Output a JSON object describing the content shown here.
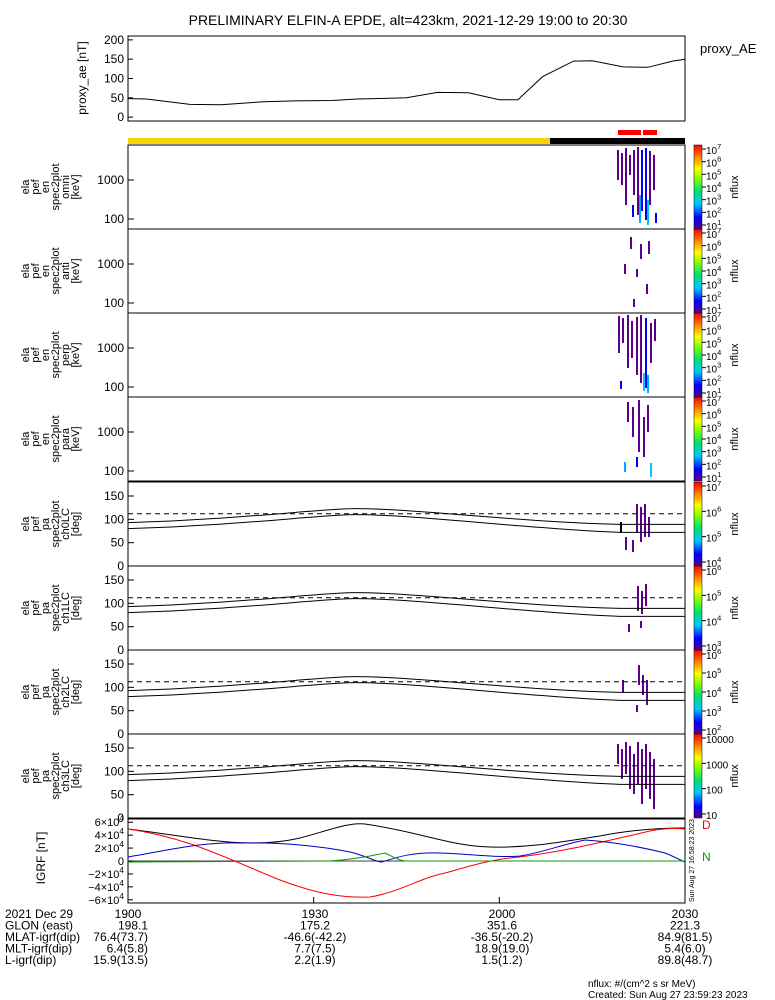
{
  "title": "PRELIMINARY ELFIN-A EPDE, alt=423km, 2021-12-29 19:00 to 20:30",
  "colors": {
    "yellow": "#f5d800",
    "black": "#000000",
    "red": "#ff0000",
    "blue": "#0000cc",
    "green": "#00a000"
  },
  "chart_data": [
    {
      "type": "line",
      "panel": "proxy_ae",
      "ylabel": "proxy_ae [nT]",
      "legend": "proxy_AE",
      "ylim": [
        -10,
        210
      ],
      "yticks": [
        "200",
        "150",
        "100",
        "50",
        "0"
      ],
      "x_min": [
        0,
        3,
        10,
        15,
        22,
        27,
        33,
        37,
        40,
        45,
        50,
        55,
        60,
        63,
        67,
        72,
        75,
        80,
        84,
        88,
        90
      ],
      "values": [
        48,
        47,
        33,
        32,
        40,
        42,
        43,
        47,
        48,
        50,
        64,
        63,
        45,
        45,
        105,
        145,
        146,
        130,
        129,
        145,
        150
      ]
    },
    {
      "type": "heatmap",
      "panel": "ela_pef_en_spec2plot_omni",
      "ylabel": "ela pef en spec2plot omni [keV]",
      "yscale": "log",
      "yticks": [
        "1000",
        "100"
      ],
      "colorbar_label": "nflux",
      "colorbar_ticks": [
        "10^1",
        "10^2",
        "10^3",
        "10^4",
        "10^5",
        "10^6",
        "10^7"
      ]
    },
    {
      "type": "heatmap",
      "panel": "ela_pef_en_spec2plot_anti",
      "ylabel": "ela pef en spec2plot anti [keV]",
      "yscale": "log",
      "yticks": [
        "1000",
        "100"
      ],
      "colorbar_label": "nflux",
      "colorbar_ticks": [
        "10^1",
        "10^2",
        "10^3",
        "10^4",
        "10^5",
        "10^6",
        "10^7"
      ]
    },
    {
      "type": "heatmap",
      "panel": "ela_pef_en_spec2plot_perp",
      "ylabel": "ela pef en spec2plot perp [keV]",
      "yscale": "log",
      "yticks": [
        "1000",
        "100"
      ],
      "colorbar_label": "nflux",
      "colorbar_ticks": [
        "10^1",
        "10^2",
        "10^3",
        "10^4",
        "10^5",
        "10^6",
        "10^7"
      ]
    },
    {
      "type": "heatmap",
      "panel": "ela_pef_en_spec2plot_para",
      "ylabel": "ela pef en spec2plot para [keV]",
      "yscale": "log",
      "yticks": [
        "1000",
        "100"
      ],
      "colorbar_label": "nflux",
      "colorbar_ticks": [
        "10^1",
        "10^2",
        "10^3",
        "10^4",
        "10^5",
        "10^6",
        "10^7"
      ]
    },
    {
      "type": "heatmap",
      "panel": "ela_pef_pa_spec2plot_ch0LC",
      "ylabel": "ela pef pa spec2plot ch0LC [deg]",
      "ylim": [
        0,
        180
      ],
      "yticks": [
        "150",
        "100",
        "50",
        "0"
      ],
      "colorbar_label": "nflux",
      "colorbar_ticks": [
        "10^4",
        "10^5",
        "10^6",
        "10^7"
      ]
    },
    {
      "type": "heatmap",
      "panel": "ela_pef_pa_spec2plot_ch1LC",
      "ylabel": "ela pef pa spec2plot ch1LC [deg]",
      "ylim": [
        0,
        180
      ],
      "yticks": [
        "150",
        "100",
        "50",
        "0"
      ],
      "colorbar_label": "nflux",
      "colorbar_ticks": [
        "10^3",
        "10^4",
        "10^5",
        "10^6"
      ]
    },
    {
      "type": "heatmap",
      "panel": "ela_pef_pa_spec2plot_ch2LC",
      "ylabel": "ela pef pa spec2plot ch2LC [deg]",
      "ylim": [
        0,
        180
      ],
      "yticks": [
        "150",
        "100",
        "50",
        "0"
      ],
      "colorbar_label": "nflux",
      "colorbar_ticks": [
        "10^2",
        "10^3",
        "10^4",
        "10^5",
        "10^6"
      ]
    },
    {
      "type": "heatmap",
      "panel": "ela_pef_pa_spec2plot_ch3LC",
      "ylabel": "ela pef pa spec2plot ch3LC [deg]",
      "ylim": [
        0,
        180
      ],
      "yticks": [
        "150",
        "100",
        "50",
        "0"
      ],
      "colorbar_label": "nflux",
      "colorbar_ticks": [
        "10",
        "100",
        "1000",
        "10000"
      ]
    },
    {
      "type": "line",
      "panel": "igrf",
      "ylabel": "IGRF [nT]",
      "ylim": [
        -65000,
        65000
      ],
      "yticks": [
        "6×10^4",
        "4×10^4",
        "2×10^4",
        "0",
        "−2×10^4",
        "−4×10^4",
        "−6×10^4"
      ],
      "legend_letters": [
        "D",
        "N"
      ]
    }
  ],
  "x_axis": {
    "label": "2021 Dec 29",
    "ticks": [
      "1900",
      "1930",
      "2000",
      "2030"
    ],
    "rows": [
      {
        "label": "GLON (east)",
        "values": [
          "198.1",
          "175.2",
          "351.6",
          "221.3"
        ]
      },
      {
        "label": "MLAT-igrf(dip)",
        "values": [
          "76.4(73.7)",
          "-46.6(-42.2)",
          "-36.5(-20.2)",
          "84.9(81.5)"
        ]
      },
      {
        "label": "MLT-igrf(dip)",
        "values": [
          "6.4(5.8)",
          "7.7(7.5)",
          "18.9(19.0)",
          "5.4(6.0)"
        ]
      },
      {
        "label": "L-igrf(dip)",
        "values": [
          "15.9(13.5)",
          "2.2(1.9)",
          "1.5(1.2)",
          "89.8(48.7)"
        ]
      }
    ]
  },
  "footer": {
    "units": "nflux: #/(cm^2 s sr MeV)",
    "created": "Created: Sun Aug 27 23:59:23 2023",
    "side_stamp": "Sun Aug 27 16:58:23 2023"
  }
}
